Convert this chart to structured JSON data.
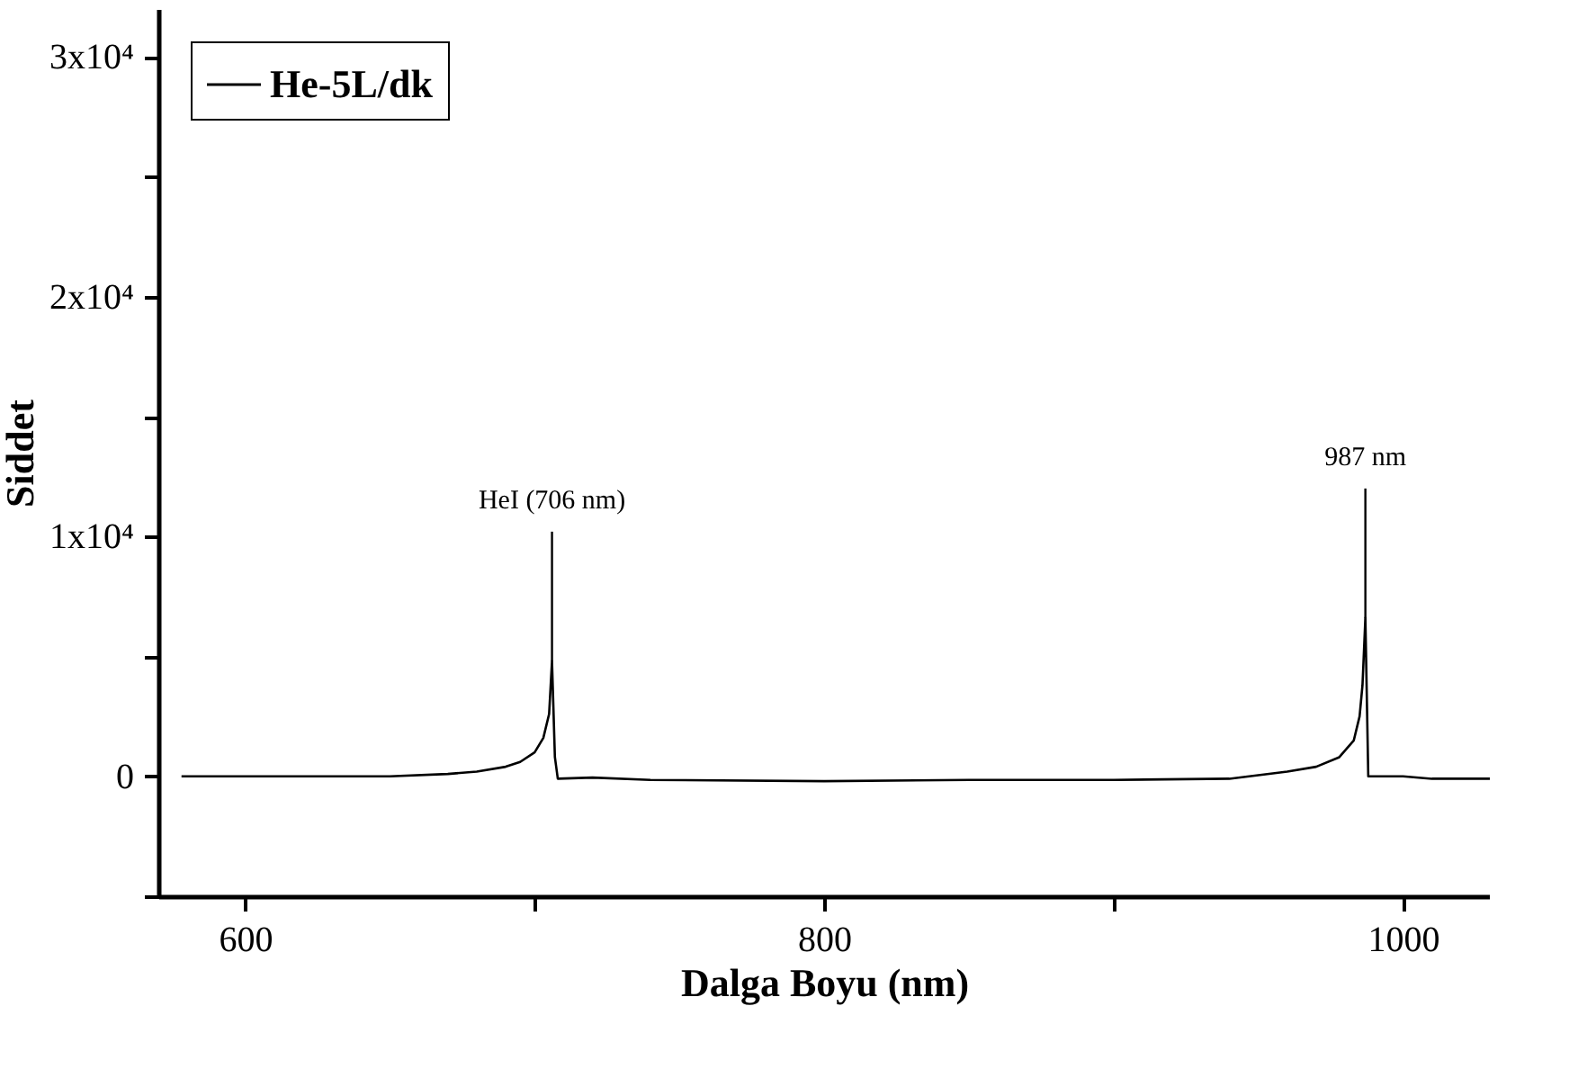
{
  "chart_data": {
    "type": "line",
    "xlabel": "Dalga Boyu (nm)",
    "ylabel": "Siddet",
    "x": [
      578,
      650,
      670,
      680,
      690,
      695,
      700,
      703,
      705,
      706,
      707,
      708,
      720,
      740,
      800,
      850,
      900,
      940,
      960,
      970,
      978,
      983,
      985,
      986,
      987,
      988,
      1000,
      1010,
      1030
    ],
    "series": [
      {
        "name": "He-5L/dk",
        "color": "#000000",
        "values": [
          0,
          0,
          100,
          200,
          400,
          600,
          1000,
          1600,
          2600,
          4800,
          800,
          -100,
          -50,
          -150,
          -200,
          -150,
          -150,
          -100,
          200,
          400,
          800,
          1500,
          2500,
          3800,
          6600,
          0,
          0,
          -100,
          -100
        ]
      }
    ],
    "xlim": [
      570,
      1030
    ],
    "xticks": [
      600,
      {
        "value": 700,
        "label": null
      },
      800,
      {
        "value": 900,
        "label": null
      },
      1000
    ],
    "ylim": [
      -5000,
      32000
    ],
    "yticks": [
      {
        "value": -5000,
        "label": null
      },
      {
        "value": 0,
        "label": "0"
      },
      {
        "value": 5000,
        "label": null
      },
      {
        "value": 10000,
        "label": "1x10⁴"
      },
      {
        "value": 15000,
        "label": null
      },
      {
        "value": 20000,
        "label": "2x10⁴"
      },
      {
        "value": 25000,
        "label": null
      },
      {
        "value": 30000,
        "label": "3x10⁴"
      }
    ],
    "annotations": [
      {
        "text": "HeI (706 nm)",
        "x": 706,
        "y": 4800
      },
      {
        "text": "987 nm",
        "x": 987,
        "y": 6600
      }
    ],
    "legend": "top left",
    "marker": "none",
    "line_style": "solid"
  }
}
